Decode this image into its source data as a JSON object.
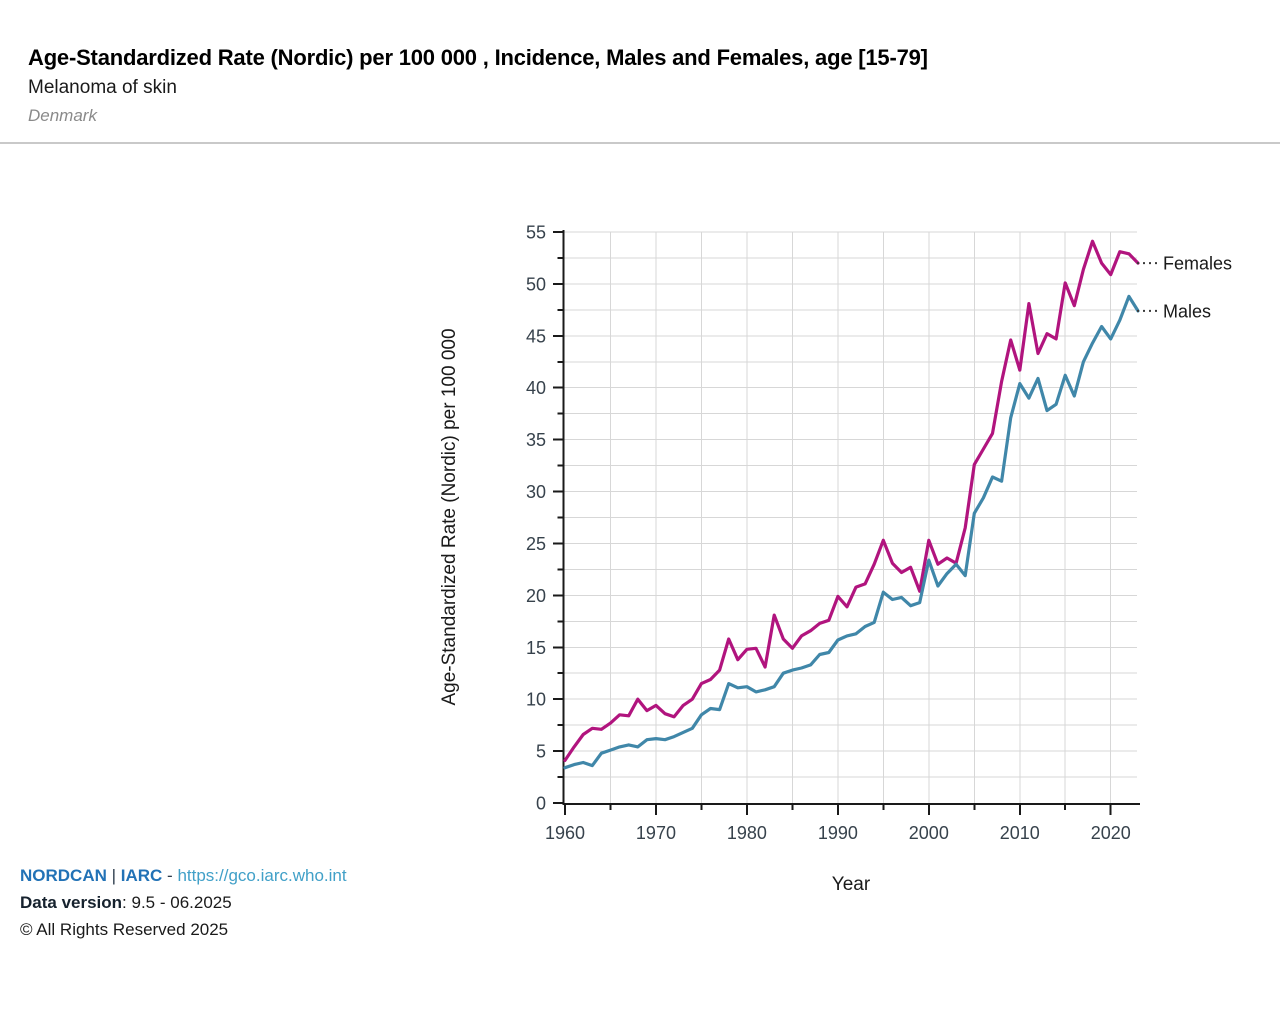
{
  "header": {
    "title": "Age-Standardized Rate (Nordic) per 100 000 , Incidence, Males and Females, age [15-79]",
    "subtitle": "Melanoma of skin",
    "region": "Denmark"
  },
  "chart_data": {
    "type": "line",
    "title": "",
    "xlabel": "Year",
    "ylabel": "Age-Standardized Rate (Nordic) per 100 000",
    "xlim": [
      1960,
      2023
    ],
    "ylim": [
      0,
      55
    ],
    "grid": "on",
    "x_major_ticks": [
      1960,
      1970,
      1980,
      1990,
      2000,
      2010,
      2020
    ],
    "x_minor_tick_step": 5,
    "y_major_ticks": [
      0,
      5,
      10,
      15,
      20,
      25,
      30,
      35,
      40,
      45,
      50,
      55
    ],
    "y_minor_tick_step": 2.5,
    "legend_position": "right-of-line-end",
    "x": [
      1960,
      1961,
      1962,
      1963,
      1964,
      1965,
      1966,
      1967,
      1968,
      1969,
      1970,
      1971,
      1972,
      1973,
      1974,
      1975,
      1976,
      1977,
      1978,
      1979,
      1980,
      1981,
      1982,
      1983,
      1984,
      1985,
      1986,
      1987,
      1988,
      1989,
      1990,
      1991,
      1992,
      1993,
      1994,
      1995,
      1996,
      1997,
      1998,
      1999,
      2000,
      2001,
      2002,
      2003,
      2004,
      2005,
      2006,
      2007,
      2008,
      2009,
      2010,
      2011,
      2012,
      2013,
      2014,
      2015,
      2016,
      2017,
      2018,
      2019,
      2020,
      2021,
      2022,
      2023
    ],
    "series": [
      {
        "name": "Females",
        "color": "#b1147e",
        "values": [
          4.1,
          5.4,
          6.6,
          7.2,
          7.1,
          7.7,
          8.5,
          8.4,
          10.0,
          8.9,
          9.4,
          8.6,
          8.3,
          9.4,
          10.0,
          11.5,
          11.9,
          12.8,
          15.8,
          13.8,
          14.8,
          14.9,
          13.1,
          18.1,
          15.8,
          14.9,
          16.1,
          16.6,
          17.3,
          17.6,
          19.9,
          18.9,
          20.8,
          21.1,
          23.0,
          25.3,
          23.1,
          22.2,
          22.7,
          20.4,
          25.3,
          23.0,
          23.6,
          23.1,
          26.5,
          32.6,
          34.1,
          35.6,
          40.6,
          44.6,
          41.7,
          48.1,
          43.3,
          45.2,
          44.7,
          50.1,
          47.9,
          51.4,
          54.1,
          52.0,
          50.9,
          53.1,
          52.9,
          52.0
        ]
      },
      {
        "name": "Males",
        "color": "#4087a9",
        "values": [
          3.4,
          3.7,
          3.9,
          3.6,
          4.8,
          5.1,
          5.4,
          5.6,
          5.4,
          6.1,
          6.2,
          6.1,
          6.4,
          6.8,
          7.2,
          8.5,
          9.1,
          9.0,
          11.5,
          11.1,
          11.2,
          10.7,
          10.9,
          11.2,
          12.5,
          12.8,
          13.0,
          13.3,
          14.3,
          14.5,
          15.7,
          16.1,
          16.3,
          17.0,
          17.4,
          20.3,
          19.6,
          19.8,
          19.0,
          19.3,
          23.4,
          20.9,
          22.1,
          23.0,
          21.9,
          27.9,
          29.4,
          31.4,
          31.0,
          37.1,
          40.4,
          39.0,
          40.9,
          37.8,
          38.4,
          41.2,
          39.2,
          42.5,
          44.3,
          45.9,
          44.7,
          46.5,
          48.8,
          47.4
        ]
      }
    ],
    "colors": {
      "grid": "#d7d7d7",
      "axis": "#1a1a1a",
      "tick_label": "#37424c",
      "legend_text": "#1a1a1a",
      "leader_dots": "#3a3a3a"
    }
  },
  "footer": {
    "brand": "NORDCAN",
    "pipe": " | ",
    "org": "IARC",
    "dash": " - ",
    "url": "https://gco.iarc.who.int",
    "data_version_label": "Data version",
    "data_version_value": ": 9.5 - 06.2025",
    "copyright": "© All Rights Reserved 2025"
  }
}
